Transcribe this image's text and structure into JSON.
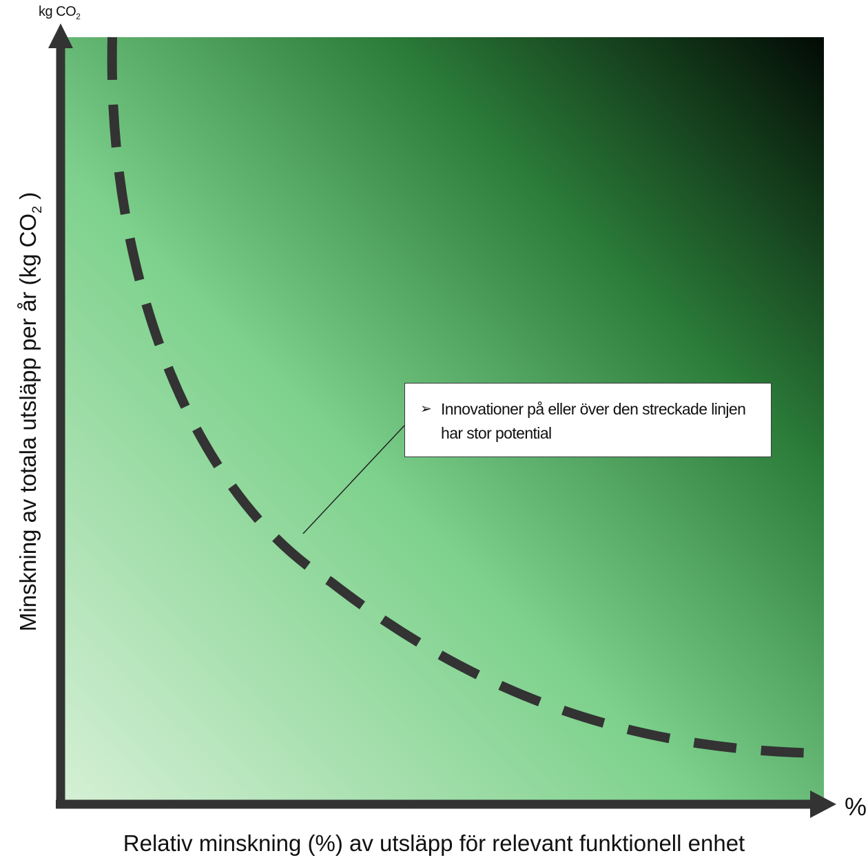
{
  "diagram": {
    "y_axis_label": "Minskning av totala utsläpp per år (kg CO",
    "y_axis_label_sub": "2",
    "y_axis_label_end": ")",
    "x_axis_label": "Relativ minskning (%) av utsläpp för relevant funktionell enhet",
    "y_unit": "kg CO",
    "y_unit_sub": "2",
    "x_unit": "%",
    "callout_bullet": "➢",
    "callout_text": "Innovationer på eller över den streckade linjen har stor potential",
    "colors": {
      "gradient_light": "#d6f0d6",
      "gradient_mid": "#7dd18c",
      "gradient_dark": "#2a7a38",
      "gradient_darkest": "#020a04",
      "axis": "#333333",
      "curve": "#333333"
    }
  }
}
